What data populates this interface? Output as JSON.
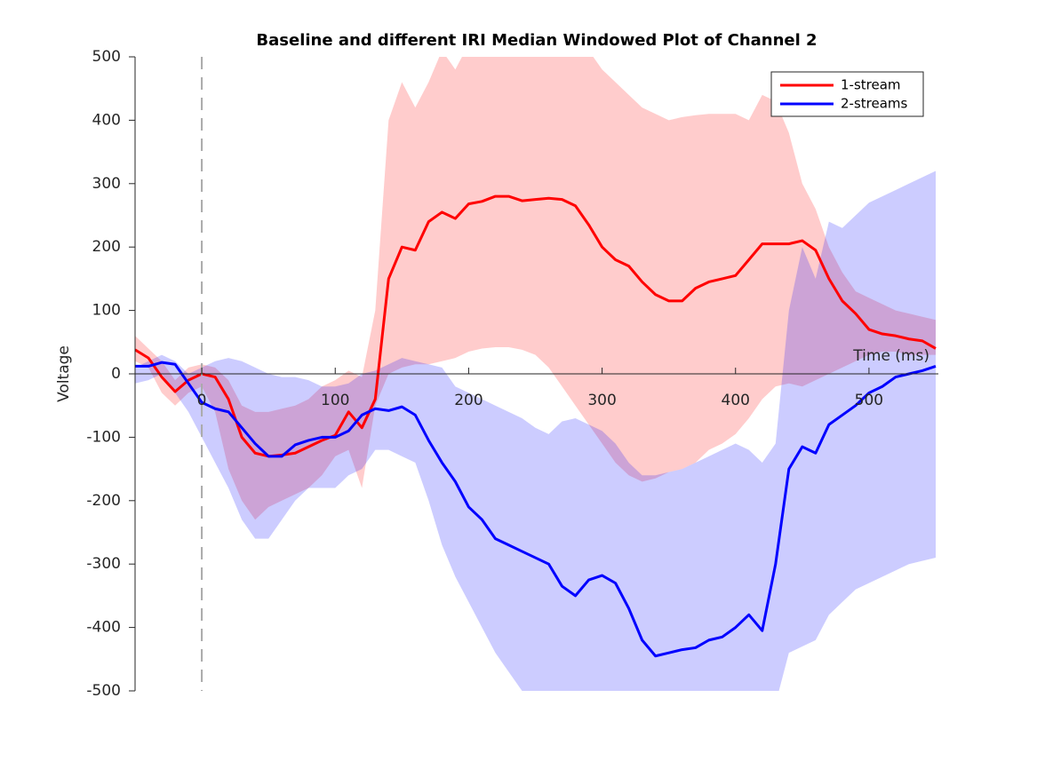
{
  "chart_data": {
    "type": "line-band",
    "title": "Baseline and different IRI Median Windowed Plot of Channel 2",
    "x_label": "Time (ms)",
    "y_label": "Voltage",
    "x": [
      -50,
      -40,
      -30,
      -20,
      -10,
      0,
      10,
      20,
      30,
      40,
      50,
      60,
      70,
      80,
      90,
      100,
      110,
      120,
      130,
      140,
      150,
      160,
      170,
      180,
      190,
      200,
      210,
      220,
      230,
      240,
      250,
      260,
      270,
      280,
      290,
      300,
      310,
      320,
      330,
      340,
      350,
      360,
      370,
      380,
      390,
      400,
      410,
      420,
      430,
      440,
      450,
      460,
      470,
      480,
      490,
      500,
      510,
      520,
      530,
      540,
      550
    ],
    "series": [
      {
        "name": "1-stream",
        "color": "#ff0000",
        "values": [
          38,
          25,
          -5,
          -28,
          -10,
          0,
          -5,
          -40,
          -100,
          -125,
          -130,
          -128,
          -125,
          -115,
          -105,
          -97,
          -60,
          -85,
          -40,
          150,
          200,
          195,
          240,
          255,
          245,
          268,
          272,
          280,
          280,
          273,
          275,
          277,
          275,
          265,
          235,
          200,
          180,
          170,
          145,
          125,
          115,
          115,
          135,
          145,
          150,
          155,
          180,
          205,
          205,
          205,
          210,
          195,
          150,
          115,
          95,
          70,
          63,
          60,
          55,
          52,
          40
        ],
        "upper": [
          60,
          40,
          20,
          -10,
          10,
          15,
          10,
          -10,
          -50,
          -60,
          -60,
          -55,
          -50,
          -40,
          -20,
          -10,
          5,
          -5,
          100,
          400,
          460,
          420,
          460,
          510,
          480,
          520,
          540,
          540,
          540,
          540,
          540,
          540,
          540,
          530,
          510,
          480,
          460,
          440,
          420,
          410,
          400,
          405,
          408,
          410,
          410,
          410,
          400,
          440,
          430,
          380,
          300,
          260,
          200,
          160,
          130,
          120,
          110,
          100,
          95,
          90,
          85
        ],
        "lower": [
          20,
          10,
          -30,
          -50,
          -30,
          -20,
          -60,
          -150,
          -200,
          -230,
          -210,
          -200,
          -190,
          -180,
          -160,
          -130,
          -120,
          -180,
          -50,
          0,
          10,
          15,
          15,
          20,
          25,
          35,
          40,
          42,
          42,
          38,
          30,
          10,
          -20,
          -50,
          -80,
          -110,
          -140,
          -160,
          -170,
          -165,
          -155,
          -150,
          -140,
          -120,
          -110,
          -95,
          -70,
          -40,
          -20,
          -15,
          -20,
          -10,
          0,
          10,
          20,
          30,
          35,
          35,
          30,
          30,
          30
        ]
      },
      {
        "name": "2-streams",
        "color": "#0000ff",
        "values": [
          12,
          12,
          18,
          15,
          -15,
          -45,
          -55,
          -60,
          -85,
          -110,
          -130,
          -130,
          -112,
          -105,
          -100,
          -100,
          -90,
          -65,
          -55,
          -58,
          -52,
          -65,
          -105,
          -140,
          -170,
          -210,
          -230,
          -260,
          -270,
          -280,
          -290,
          -300,
          -335,
          -350,
          -325,
          -318,
          -330,
          -370,
          -420,
          -445,
          -440,
          -435,
          -432,
          -420,
          -415,
          -400,
          -380,
          -405,
          -300,
          -150,
          -115,
          -125,
          -80,
          -65,
          -50,
          -30,
          -20,
          -5,
          0,
          5,
          12
        ],
        "upper": [
          10,
          20,
          30,
          20,
          0,
          10,
          20,
          25,
          20,
          10,
          0,
          -5,
          -5,
          -10,
          -20,
          -20,
          -15,
          0,
          5,
          15,
          25,
          20,
          15,
          10,
          -20,
          -30,
          -40,
          -50,
          -60,
          -70,
          -85,
          -95,
          -75,
          -70,
          -80,
          -90,
          -110,
          -140,
          -160,
          -160,
          -155,
          -150,
          -140,
          -130,
          -120,
          -110,
          -120,
          -140,
          -110,
          100,
          200,
          150,
          240,
          230,
          250,
          270,
          280,
          290,
          300,
          310,
          320
        ],
        "lower": [
          -15,
          -10,
          0,
          -30,
          -60,
          -100,
          -140,
          -180,
          -230,
          -260,
          -260,
          -230,
          -200,
          -180,
          -180,
          -180,
          -160,
          -150,
          -120,
          -120,
          -130,
          -140,
          -200,
          -270,
          -320,
          -360,
          -400,
          -440,
          -470,
          -500,
          -520,
          -520,
          -520,
          -520,
          -520,
          -520,
          -520,
          -520,
          -520,
          -520,
          -520,
          -520,
          -520,
          -520,
          -520,
          -520,
          -520,
          -520,
          -520,
          -440,
          -430,
          -420,
          -380,
          -360,
          -340,
          -330,
          -320,
          -310,
          -300,
          -295,
          -290
        ]
      }
    ],
    "xlim": [
      -50,
      552
    ],
    "xticks": [
      0,
      100,
      200,
      300,
      400,
      500
    ],
    "ylim": [
      -500,
      500
    ],
    "yticks": [
      -500,
      -400,
      -300,
      -200,
      -100,
      0,
      100,
      200,
      300,
      400,
      500
    ],
    "vline": 0,
    "legend": "upper right",
    "band_opacity": 0.2
  }
}
